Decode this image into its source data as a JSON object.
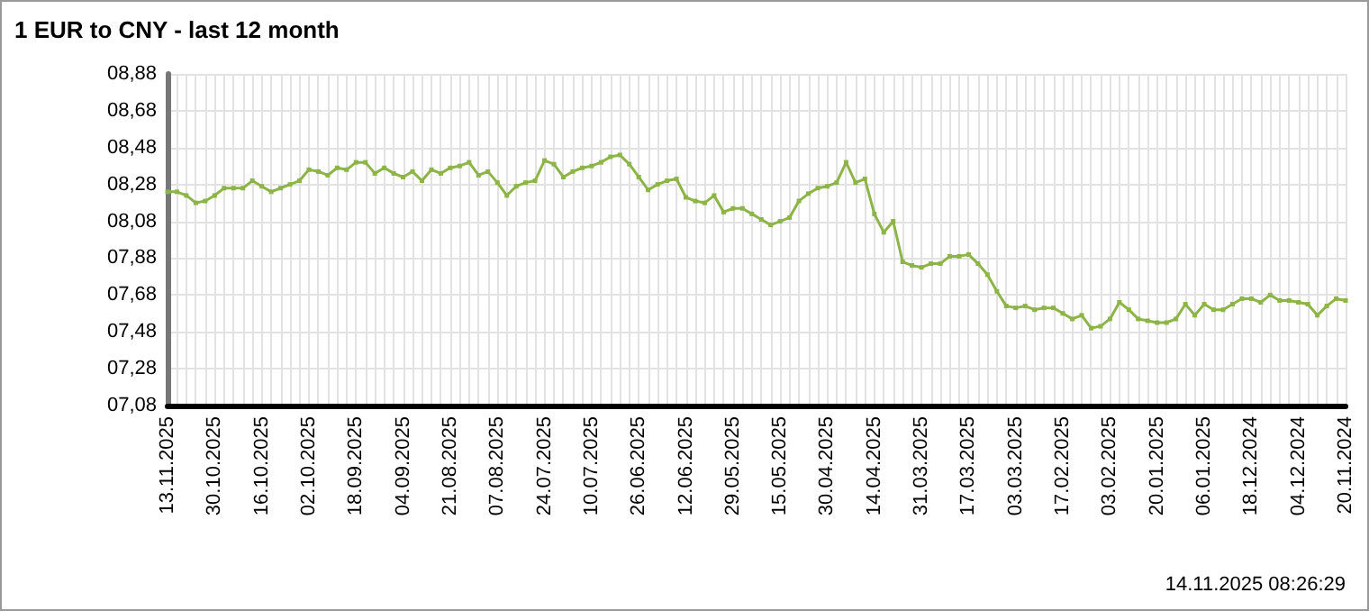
{
  "chart_data": {
    "type": "line",
    "title": "1 EUR to CNY - last 12 month",
    "annotations": [
      "14.11.2025 08:26:29"
    ],
    "categories": [
      "13.11.2025",
      null,
      null,
      null,
      null,
      "30.10.2025",
      null,
      null,
      null,
      null,
      "16.10.2025",
      null,
      null,
      null,
      null,
      "02.10.2025",
      null,
      null,
      null,
      null,
      "18.09.2025",
      null,
      null,
      null,
      null,
      "04.09.2025",
      null,
      null,
      null,
      null,
      "21.08.2025",
      null,
      null,
      null,
      null,
      "07.08.2025",
      null,
      null,
      null,
      null,
      "24.07.2025",
      null,
      null,
      null,
      null,
      "10.07.2025",
      null,
      null,
      null,
      null,
      "26.06.2025",
      null,
      null,
      null,
      null,
      "12.06.2025",
      null,
      null,
      null,
      null,
      "29.05.2025",
      null,
      null,
      null,
      null,
      "15.05.2025",
      null,
      null,
      null,
      null,
      "30.04.2025",
      null,
      null,
      null,
      null,
      "14.04.2025",
      null,
      null,
      null,
      null,
      "31.03.2025",
      null,
      null,
      null,
      null,
      "17.03.2025",
      null,
      null,
      null,
      null,
      "03.03.2025",
      null,
      null,
      null,
      null,
      "17.02.2025",
      null,
      null,
      null,
      null,
      "03.02.2025",
      null,
      null,
      null,
      null,
      "20.01.2025",
      null,
      null,
      null,
      null,
      "06.01.2025",
      null,
      null,
      null,
      null,
      "18.12.2024",
      null,
      null,
      null,
      null,
      "04.12.2024",
      null,
      null,
      null,
      null,
      "20.11.2024"
    ],
    "series": [
      {
        "color": "#8cb446",
        "values": [
          8.24,
          8.24,
          8.22,
          8.18,
          8.19,
          8.22,
          8.26,
          8.26,
          8.26,
          8.3,
          8.27,
          8.24,
          8.26,
          8.28,
          8.3,
          8.36,
          8.35,
          8.33,
          8.37,
          8.36,
          8.4,
          8.4,
          8.34,
          8.37,
          8.34,
          8.32,
          8.35,
          8.3,
          8.36,
          8.34,
          8.37,
          8.38,
          8.4,
          8.33,
          8.35,
          8.29,
          8.22,
          8.27,
          8.29,
          8.3,
          8.41,
          8.39,
          8.32,
          8.35,
          8.37,
          8.38,
          8.4,
          8.43,
          8.44,
          8.39,
          8.32,
          8.25,
          8.28,
          8.3,
          8.31,
          8.21,
          8.19,
          8.18,
          8.22,
          8.13,
          8.15,
          8.15,
          8.12,
          8.09,
          8.06,
          8.08,
          8.1,
          8.19,
          8.23,
          8.26,
          8.27,
          8.29,
          8.4,
          8.29,
          8.31,
          8.12,
          8.02,
          8.08,
          7.86,
          7.84,
          7.83,
          7.85,
          7.85,
          7.89,
          7.89,
          7.9,
          7.85,
          7.79,
          7.7,
          7.62,
          7.61,
          7.62,
          7.6,
          7.61,
          7.61,
          7.58,
          7.55,
          7.57,
          7.5,
          7.51,
          7.55,
          7.64,
          7.6,
          7.55,
          7.54,
          7.53,
          7.53,
          7.55,
          7.63,
          7.57,
          7.63,
          7.6,
          7.6,
          7.63,
          7.66,
          7.66,
          7.64,
          7.68,
          7.65,
          7.65,
          7.64,
          7.63,
          7.57,
          7.62,
          7.66,
          7.65
        ]
      }
    ],
    "ylim": [
      7.08,
      8.88
    ],
    "yticks": [
      {
        "value": 7.08,
        "label": "07,08"
      },
      {
        "value": 7.28,
        "label": "07,28"
      },
      {
        "value": 7.48,
        "label": "07,48"
      },
      {
        "value": 7.68,
        "label": "07,68"
      },
      {
        "value": 7.88,
        "label": "07,88"
      },
      {
        "value": 8.08,
        "label": "08,08"
      },
      {
        "value": 8.28,
        "label": "08,28"
      },
      {
        "value": 8.48,
        "label": "08,48"
      },
      {
        "value": 8.68,
        "label": "08,68"
      },
      {
        "value": 8.88,
        "label": "08,88"
      }
    ],
    "grid": true,
    "marker": "square",
    "line_style": "solid"
  }
}
